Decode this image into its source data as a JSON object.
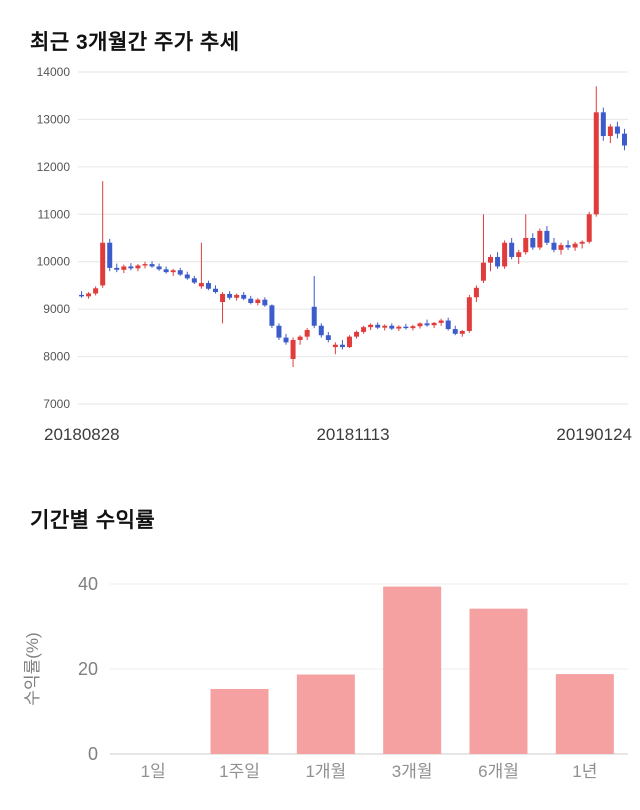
{
  "page": {
    "background": "#ffffff"
  },
  "sections": {
    "price": {
      "title": "최근 3개월간 주가 추세"
    },
    "returns": {
      "title": "기간별 수익률"
    }
  },
  "chart_data": [
    {
      "type": "candlestick",
      "title": "최근 3개월간 주가 추세",
      "ylim": [
        7000,
        14000
      ],
      "yticks": [
        7000,
        8000,
        9000,
        10000,
        11000,
        12000,
        13000,
        14000
      ],
      "x_labels": [
        "20180828",
        "20181113",
        "20190124"
      ],
      "grid": true,
      "up_color": "#e03c3c",
      "down_color": "#3c5ccc",
      "grid_color": "#e6e6e6",
      "tick_color": "#555555",
      "date_color": "#3c3c3c",
      "candles": [
        [
          9300,
          9380,
          9240,
          9270
        ],
        [
          9270,
          9360,
          9220,
          9330
        ],
        [
          9330,
          9480,
          9290,
          9440
        ],
        [
          9500,
          11700,
          9450,
          10400
        ],
        [
          10400,
          10480,
          9800,
          9870
        ],
        [
          9870,
          9960,
          9780,
          9830
        ],
        [
          9830,
          9940,
          9760,
          9900
        ],
        [
          9900,
          9970,
          9820,
          9860
        ],
        [
          9860,
          9950,
          9800,
          9920
        ],
        [
          9920,
          10000,
          9860,
          9950
        ],
        [
          9950,
          10010,
          9870,
          9900
        ],
        [
          9900,
          9960,
          9810,
          9840
        ],
        [
          9840,
          9900,
          9750,
          9780
        ],
        [
          9780,
          9850,
          9700,
          9820
        ],
        [
          9820,
          9870,
          9700,
          9730
        ],
        [
          9730,
          9790,
          9620,
          9650
        ],
        [
          9650,
          9700,
          9530,
          9560
        ],
        [
          9480,
          10400,
          9430,
          9550
        ],
        [
          9550,
          9600,
          9400,
          9430
        ],
        [
          9430,
          9500,
          9330,
          9360
        ],
        [
          9150,
          9360,
          8700,
          9320
        ],
        [
          9320,
          9380,
          9200,
          9240
        ],
        [
          9240,
          9330,
          9180,
          9300
        ],
        [
          9300,
          9360,
          9190,
          9220
        ],
        [
          9220,
          9280,
          9100,
          9130
        ],
        [
          9130,
          9230,
          9080,
          9200
        ],
        [
          9200,
          9250,
          9050,
          9080
        ],
        [
          9080,
          9100,
          8600,
          8650
        ],
        [
          8650,
          8700,
          8350,
          8400
        ],
        [
          8400,
          8480,
          8250,
          8300
        ],
        [
          7950,
          8400,
          7780,
          8350
        ],
        [
          8350,
          8450,
          8250,
          8420
        ],
        [
          8420,
          8600,
          8350,
          8560
        ],
        [
          9050,
          9700,
          8600,
          8650
        ],
        [
          8650,
          8700,
          8400,
          8450
        ],
        [
          8450,
          8520,
          8300,
          8350
        ],
        [
          8200,
          8300,
          8050,
          8250
        ],
        [
          8250,
          8350,
          8150,
          8200
        ],
        [
          8200,
          8450,
          8180,
          8420
        ],
        [
          8420,
          8550,
          8380,
          8520
        ],
        [
          8520,
          8650,
          8480,
          8620
        ],
        [
          8620,
          8700,
          8560,
          8670
        ],
        [
          8670,
          8720,
          8580,
          8610
        ],
        [
          8610,
          8680,
          8550,
          8650
        ],
        [
          8650,
          8700,
          8560,
          8590
        ],
        [
          8590,
          8660,
          8540,
          8630
        ],
        [
          8630,
          8690,
          8570,
          8600
        ],
        [
          8600,
          8670,
          8550,
          8640
        ],
        [
          8640,
          8720,
          8590,
          8700
        ],
        [
          8700,
          8780,
          8630,
          8660
        ],
        [
          8660,
          8730,
          8600,
          8710
        ],
        [
          8710,
          8800,
          8650,
          8760
        ],
        [
          8760,
          8820,
          8550,
          8580
        ],
        [
          8580,
          8650,
          8450,
          8480
        ],
        [
          8480,
          8560,
          8420,
          8540
        ],
        [
          8540,
          9300,
          8500,
          9250
        ],
        [
          9250,
          9500,
          9150,
          9450
        ],
        [
          9600,
          11000,
          9550,
          9980
        ],
        [
          9980,
          10150,
          9800,
          10100
        ],
        [
          10100,
          10200,
          9850,
          9900
        ],
        [
          9900,
          10450,
          9850,
          10400
        ],
        [
          10400,
          10500,
          10050,
          10100
        ],
        [
          10100,
          10250,
          9950,
          10200
        ],
        [
          10200,
          11000,
          10150,
          10500
        ],
        [
          10500,
          10600,
          10250,
          10300
        ],
        [
          10300,
          10700,
          10250,
          10650
        ],
        [
          10650,
          10750,
          10350,
          10400
        ],
        [
          10400,
          10500,
          10200,
          10250
        ],
        [
          10250,
          10400,
          10150,
          10350
        ],
        [
          10350,
          10450,
          10250,
          10300
        ],
        [
          10300,
          10420,
          10230,
          10380
        ],
        [
          10380,
          10450,
          10280,
          10420
        ],
        [
          10420,
          11050,
          10380,
          11000
        ],
        [
          11000,
          13700,
          10950,
          13150
        ],
        [
          13150,
          13250,
          12550,
          12650
        ],
        [
          12650,
          12900,
          12500,
          12850
        ],
        [
          12850,
          12950,
          12600,
          12700
        ],
        [
          12700,
          12800,
          12350,
          12450
        ]
      ]
    },
    {
      "type": "bar",
      "title": "기간별 수익률",
      "categories": [
        "1일",
        "1주일",
        "1개월",
        "3개월",
        "6개월",
        "1년"
      ],
      "values": [
        0,
        15.3,
        18.7,
        39.4,
        34.2,
        18.8
      ],
      "ylabel": "수익률(%)",
      "yticks": [
        0,
        20,
        40
      ],
      "ylim": [
        0,
        40
      ],
      "bar_color": "#f5a1a1",
      "grid_color": "#ededed",
      "baseline_color": "#cccccc",
      "tick_color": "#808080",
      "category_color": "#909090"
    }
  ]
}
